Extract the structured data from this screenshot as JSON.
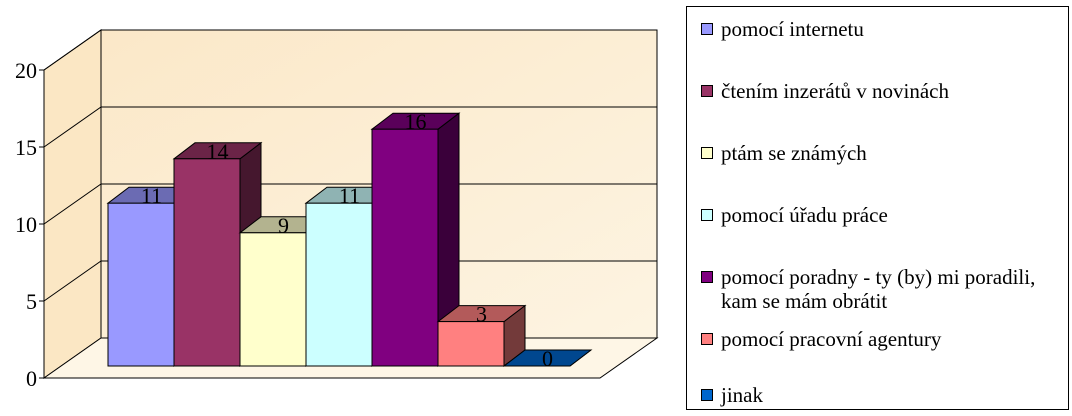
{
  "chart_data": {
    "type": "bar",
    "three_d": true,
    "title": "",
    "xlabel": "",
    "ylabel": "",
    "ylim": [
      0,
      20
    ],
    "yticks": [
      0,
      5,
      10,
      15,
      20
    ],
    "grid": true,
    "legend_position": "right",
    "series": [
      {
        "name": "pomocí internetu",
        "value": 11,
        "color": "#9999ff"
      },
      {
        "name": "čtením inzerátů v novinách",
        "value": 14,
        "color": "#993366"
      },
      {
        "name": "ptám se známých",
        "value": 9,
        "color": "#ffffcc"
      },
      {
        "name": "pomocí úřadu práce",
        "value": 11,
        "color": "#ccffff"
      },
      {
        "name": "pomocí poradny - ty (by) mi poradili, kam se mám obrátit",
        "value": 16,
        "color": "#800080"
      },
      {
        "name": "pomocí pracovní agentury",
        "value": 3,
        "color": "#ff8080"
      },
      {
        "name": "jinak",
        "value": 0,
        "color": "#0066cc"
      }
    ]
  }
}
